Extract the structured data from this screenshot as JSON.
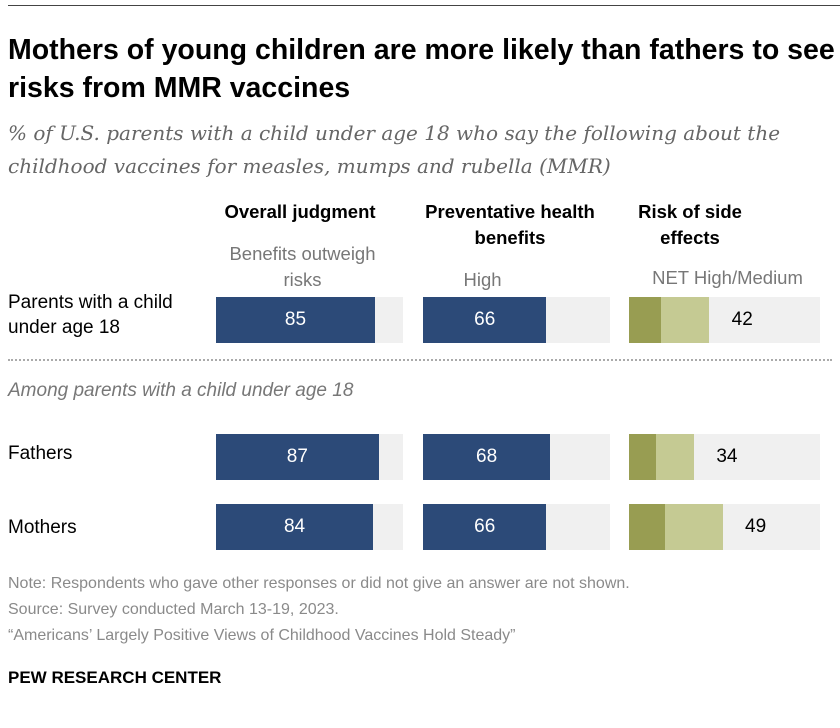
{
  "title": "Mothers of young children are more likely than fathers to see risks from MMR vaccines",
  "subtitle": "% of U.S. parents with a child under age 18 who say the following about the childhood vaccines for measles, mumps and rubella (MMR)",
  "columns": [
    {
      "header": "Overall judgment",
      "sublabel": "Benefits outweigh risks"
    },
    {
      "header": "Preventative health benefits",
      "sublabel": "High"
    },
    {
      "header": "Risk of side effects",
      "sublabel": "NET High/Medium"
    }
  ],
  "rows": [
    {
      "label": "Parents with a child under age 18"
    },
    {
      "label": "Fathers"
    },
    {
      "label": "Mothers"
    }
  ],
  "group_label": "Among parents with a child under age 18",
  "colors": {
    "navy": "#2c4a78",
    "olive_dark": "#989d52",
    "olive_light": "#c5ca93",
    "track": "#f0f0f0"
  },
  "chart_data": {
    "type": "bar",
    "categories": [
      "Parents with a child under age 18",
      "Fathers",
      "Mothers"
    ],
    "xlim": [
      0,
      100
    ],
    "series": [
      {
        "name": "Benefits outweigh risks",
        "values": [
          85,
          87,
          84
        ]
      },
      {
        "name": "High",
        "values": [
          66,
          68,
          66
        ]
      },
      {
        "name": "NET High/Medium",
        "values": [
          42,
          34,
          49
        ],
        "segments_high": [
          17,
          14,
          19
        ],
        "segments_medium": [
          25,
          20,
          30
        ]
      }
    ]
  },
  "footer": {
    "note": "Note: Respondents who gave other responses or did not give an answer are not shown.",
    "source": "Source: Survey conducted March 13-19, 2023.",
    "report": "“Americans’ Largely Positive Views of Childhood Vaccines Hold Steady”",
    "brand": "PEW RESEARCH CENTER"
  }
}
